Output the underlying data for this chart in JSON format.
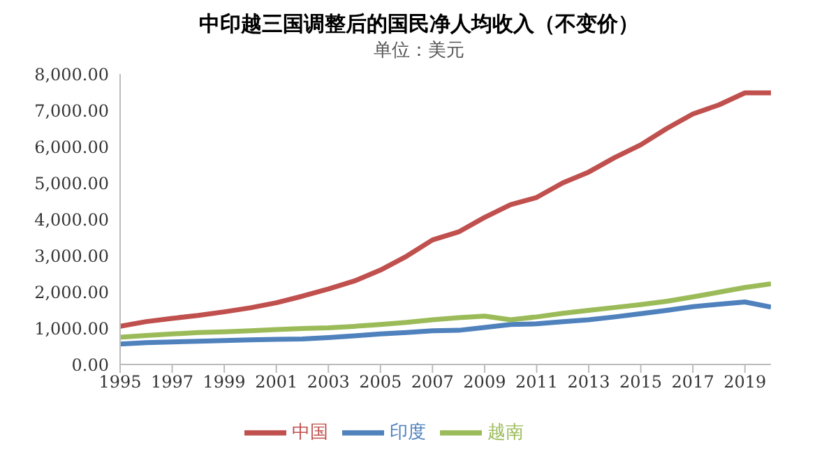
{
  "chart_data": {
    "type": "line",
    "title": "中印越三国调整后的国民净人均收入（不变价）",
    "subtitle": "单位：美元",
    "x": [
      1995,
      1996,
      1997,
      1998,
      1999,
      2000,
      2001,
      2002,
      2003,
      2004,
      2005,
      2006,
      2007,
      2008,
      2009,
      2010,
      2011,
      2012,
      2013,
      2014,
      2015,
      2016,
      2017,
      2018,
      2019,
      2020
    ],
    "series": [
      {
        "name": "印度",
        "color": "#4f81bd",
        "values": [
          560,
          600,
          620,
          640,
          660,
          680,
          690,
          700,
          740,
          790,
          840,
          880,
          930,
          940,
          1020,
          1100,
          1120,
          1180,
          1230,
          1310,
          1400,
          1490,
          1590,
          1660,
          1720,
          1580
        ]
      },
      {
        "name": "中国",
        "color": "#c0504d",
        "values": [
          1050,
          1180,
          1270,
          1350,
          1450,
          1560,
          1700,
          1880,
          2080,
          2300,
          2600,
          2980,
          3430,
          3650,
          4050,
          4400,
          4600,
          5000,
          5300,
          5700,
          6050,
          6500,
          6900,
          7150,
          7480,
          7480
        ]
      },
      {
        "name": "越南",
        "color": "#9bbb59",
        "values": [
          750,
          800,
          840,
          880,
          900,
          930,
          960,
          990,
          1010,
          1050,
          1100,
          1160,
          1230,
          1290,
          1330,
          1230,
          1310,
          1410,
          1490,
          1570,
          1650,
          1740,
          1860,
          1990,
          2120,
          2220
        ]
      }
    ],
    "xlim": [
      1995,
      2020
    ],
    "xticks": [
      1995,
      1997,
      1999,
      2001,
      2003,
      2005,
      2007,
      2009,
      2011,
      2013,
      2015,
      2017,
      2019
    ],
    "ylim": [
      0,
      8000
    ],
    "yticks": [
      {
        "value": 0,
        "label": "0.00"
      },
      {
        "value": 1000,
        "label": "1,000.00"
      },
      {
        "value": 2000,
        "label": "2,000.00"
      },
      {
        "value": 3000,
        "label": "3,000.00"
      },
      {
        "value": 4000,
        "label": "4,000.00"
      },
      {
        "value": 5000,
        "label": "5,000.00"
      },
      {
        "value": 6000,
        "label": "6,000.00"
      },
      {
        "value": 7000,
        "label": "7,000.00"
      },
      {
        "value": 8000,
        "label": "8,000.00"
      }
    ],
    "grid": false,
    "legend": "bottom",
    "marker": "none",
    "line_style": "solid"
  }
}
